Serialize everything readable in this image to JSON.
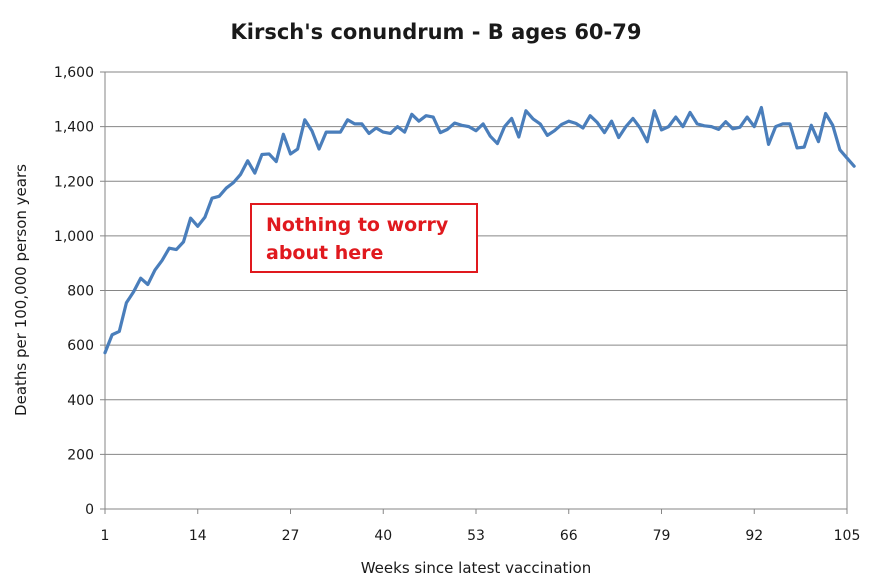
{
  "chart_data": {
    "type": "line",
    "title": "Kirsch's conundrum - B ages 60-79",
    "xlabel": "Weeks since latest vaccination",
    "ylabel": "Deaths per 100,000 person years",
    "xlim": [
      1,
      105
    ],
    "ylim": [
      0,
      1600
    ],
    "x_ticks": [
      "1",
      "14",
      "27",
      "40",
      "53",
      "66",
      "79",
      "92",
      "105"
    ],
    "y_ticks": [
      "0",
      "200",
      "400",
      "600",
      "800",
      "1,000",
      "1,200",
      "1,400",
      "1,600"
    ],
    "grid": true,
    "legend": "none",
    "line_color": "#4a7ebb",
    "annotation": [
      "Nothing to worry",
      "about here"
    ],
    "annotation_color": "#e0191e",
    "series": [
      {
        "values": [
          572,
          638,
          650,
          755,
          795,
          845,
          822,
          875,
          910,
          955,
          950,
          978,
          1065,
          1035,
          1068,
          1138,
          1145,
          1175,
          1195,
          1225,
          1275,
          1230,
          1298,
          1300,
          1272,
          1372,
          1300,
          1318,
          1425,
          1385,
          1318,
          1380,
          1380,
          1380,
          1425,
          1410,
          1410,
          1375,
          1395,
          1380,
          1375,
          1400,
          1380,
          1445,
          1420,
          1440,
          1435,
          1378,
          1390,
          1413,
          1405,
          1400,
          1385,
          1410,
          1365,
          1338,
          1400,
          1430,
          1362,
          1458,
          1428,
          1410,
          1368,
          1385,
          1408,
          1420,
          1412,
          1395,
          1440,
          1415,
          1378,
          1420,
          1360,
          1400,
          1430,
          1395,
          1345,
          1458,
          1388,
          1400,
          1435,
          1400,
          1452,
          1410,
          1403,
          1400,
          1390,
          1418,
          1392,
          1398,
          1435,
          1400,
          1470,
          1335,
          1400,
          1410,
          1410,
          1322,
          1325,
          1405,
          1345,
          1448,
          1405,
          1315,
          1285,
          1255
        ]
      }
    ]
  }
}
